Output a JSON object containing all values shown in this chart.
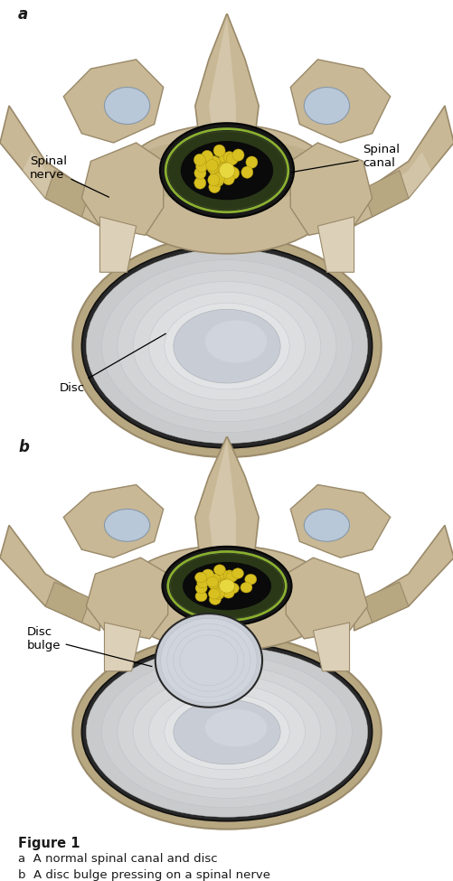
{
  "fig_width": 5.02,
  "fig_height": 9.75,
  "dpi": 100,
  "bg_color": "#ffffff",
  "label_a": "a",
  "label_b": "b",
  "label_fontsize": 12,
  "label_fontweight": "bold",
  "annotation_fontsize": 9.5,
  "annotation_color": "#000000",
  "figure_caption_title": "Figure 1",
  "caption_a": "a  A normal spinal canal and disc",
  "caption_b": "b  A disc bulge pressing on a spinal nerve",
  "caption_title_fontsize": 10.5,
  "caption_fontsize": 9.5,
  "caption_title_fontweight": "bold",
  "bone_color": "#c8b896",
  "bone_mid": "#b8a882",
  "bone_dark": "#9a8a6a",
  "bone_light": "#ddd0b8",
  "bone_shadow": "#8a7858",
  "disc_outer": "#d8dce0",
  "disc_mid": "#e4e8ec",
  "disc_light": "#f0f4f8",
  "disc_center": "#e8ecf0",
  "canal_dark": "#101810",
  "canal_green": "#2a3818",
  "canal_ring": "#8ab030",
  "dot_yellow": "#d8c020",
  "dot_border": "#a89010",
  "blue_gray": "#a8b8c8",
  "white_gray": "#e8ecf0",
  "spinal_nerve_label": "Spinal\nnerve",
  "spinal_canal_label": "Spinal\ncanal",
  "disc_label": "Disc",
  "disc_bulge_label": "Disc\nbulge"
}
